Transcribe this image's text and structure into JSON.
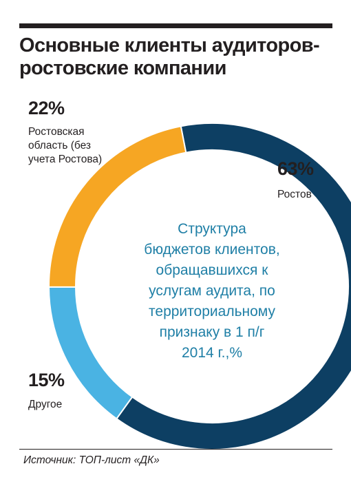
{
  "title_lines": [
    "Основные клиенты аудиторов-",
    "ростовские компании"
  ],
  "center_text_lines": [
    "Структура",
    "бюджетов клиентов,",
    "обращавшихся к",
    "услугам аудита, по",
    "территориальному",
    "признаку в 1 п/г",
    "2014 г.,%"
  ],
  "source": "Источник: ТОП-лист «ДК»",
  "colors": {
    "rostov": "#0d3f63",
    "other": "#4ab3e3",
    "region": "#f6a623",
    "center_text": "#1f7fa6"
  },
  "chart_data": {
    "type": "pie",
    "donut": true,
    "title": "Структура бюджетов клиентов, обращавшихся к услугам аудита, по территориальному признаку в 1 п/г 2014 г.,%",
    "series": [
      {
        "name": "Slices",
        "values": [
          63,
          15,
          22
        ],
        "pct_labels": [
          "63%",
          "15%",
          "22%"
        ],
        "labels": [
          [
            "Ростов"
          ],
          [
            "Другое"
          ],
          [
            "Ростовская",
            "область (без",
            "учета Ростова)"
          ]
        ],
        "colors": [
          "#0d3f63",
          "#4ab3e3",
          "#f6a623"
        ]
      }
    ]
  }
}
